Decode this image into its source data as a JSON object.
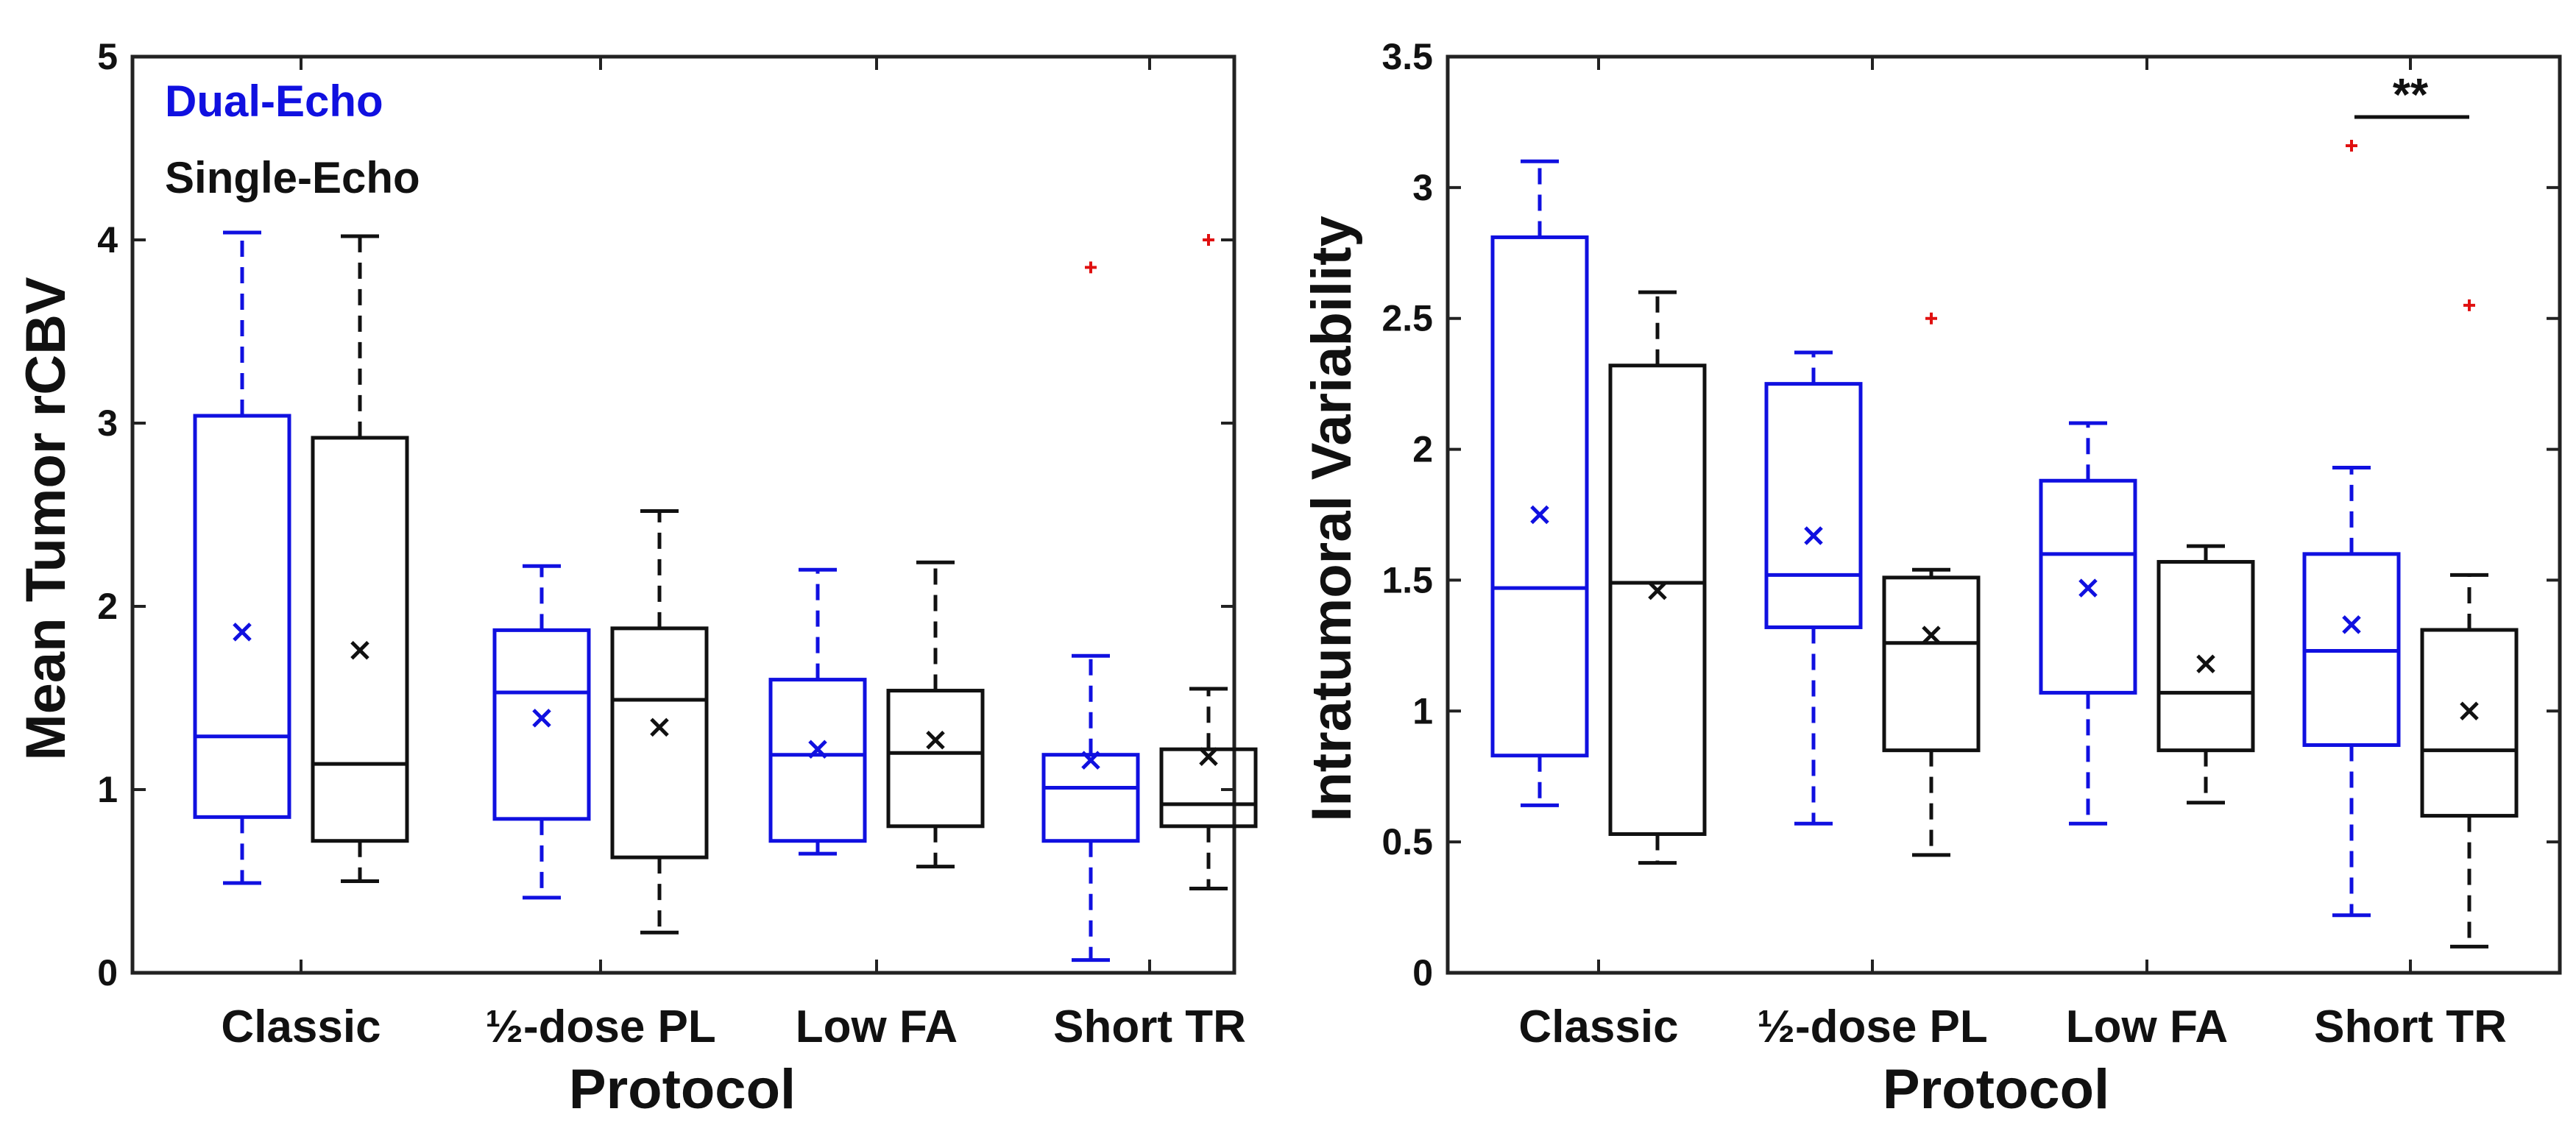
{
  "colors": {
    "dual": "#1010e0",
    "single": "#111111",
    "outlier": "#e01010"
  },
  "chart_data": [
    {
      "type": "box",
      "xlabel": "Protocol",
      "ylabel": "Mean Tumor rCBV",
      "ylim": [
        0,
        5
      ],
      "yticks": [
        0,
        1,
        2,
        3,
        4,
        5
      ],
      "categories": [
        "Classic",
        "½-dose PL",
        "Low FA",
        "Short TR"
      ],
      "legend": {
        "position": "top-left",
        "entries": [
          "Dual-Echo",
          "Single-Echo"
        ]
      },
      "series": [
        {
          "name": "Dual-Echo",
          "boxes": [
            {
              "whisker_low": 0.49,
              "q1": 0.85,
              "median": 1.29,
              "q3": 3.04,
              "whisker_high": 4.04,
              "mean": 1.86,
              "outliers": []
            },
            {
              "whisker_low": 0.41,
              "q1": 0.84,
              "median": 1.53,
              "q3": 1.87,
              "whisker_high": 2.22,
              "mean": 1.39,
              "outliers": []
            },
            {
              "whisker_low": 0.65,
              "q1": 0.72,
              "median": 1.19,
              "q3": 1.6,
              "whisker_high": 2.2,
              "mean": 1.22,
              "outliers": []
            },
            {
              "whisker_low": 0.07,
              "q1": 0.72,
              "median": 1.01,
              "q3": 1.19,
              "whisker_high": 1.73,
              "mean": 1.16,
              "outliers": [
                3.85
              ]
            }
          ]
        },
        {
          "name": "Single-Echo",
          "boxes": [
            {
              "whisker_low": 0.5,
              "q1": 0.72,
              "median": 1.14,
              "q3": 2.92,
              "whisker_high": 4.02,
              "mean": 1.76,
              "outliers": []
            },
            {
              "whisker_low": 0.22,
              "q1": 0.63,
              "median": 1.49,
              "q3": 1.88,
              "whisker_high": 2.52,
              "mean": 1.34,
              "outliers": []
            },
            {
              "whisker_low": 0.58,
              "q1": 0.8,
              "median": 1.2,
              "q3": 1.54,
              "whisker_high": 2.24,
              "mean": 1.27,
              "outliers": []
            },
            {
              "whisker_low": 0.46,
              "q1": 0.8,
              "median": 0.92,
              "q3": 1.22,
              "whisker_high": 1.55,
              "mean": 1.18,
              "outliers": [
                4.0
              ]
            }
          ]
        }
      ]
    },
    {
      "type": "box",
      "xlabel": "Protocol",
      "ylabel": "Intratumoral Variability",
      "ylim": [
        0,
        3.5
      ],
      "yticks": [
        0,
        0.5,
        1,
        1.5,
        2,
        2.5,
        3,
        3.5
      ],
      "categories": [
        "Classic",
        "½-dose PL",
        "Low FA",
        "Short TR"
      ],
      "annotation": {
        "text": "**",
        "category_index": 3
      },
      "series": [
        {
          "name": "Dual-Echo",
          "boxes": [
            {
              "whisker_low": 0.64,
              "q1": 0.83,
              "median": 1.47,
              "q3": 2.81,
              "whisker_high": 3.1,
              "mean": 1.75,
              "outliers": []
            },
            {
              "whisker_low": 0.57,
              "q1": 1.32,
              "median": 1.52,
              "q3": 2.25,
              "whisker_high": 2.37,
              "mean": 1.67,
              "outliers": []
            },
            {
              "whisker_low": 0.57,
              "q1": 1.07,
              "median": 1.6,
              "q3": 1.88,
              "whisker_high": 2.1,
              "mean": 1.47,
              "outliers": []
            },
            {
              "whisker_low": 0.22,
              "q1": 0.87,
              "median": 1.23,
              "q3": 1.6,
              "whisker_high": 1.93,
              "mean": 1.33,
              "outliers": [
                3.16
              ]
            }
          ]
        },
        {
          "name": "Single-Echo",
          "boxes": [
            {
              "whisker_low": 0.42,
              "q1": 0.53,
              "median": 1.49,
              "q3": 2.32,
              "whisker_high": 2.6,
              "mean": 1.46,
              "outliers": []
            },
            {
              "whisker_low": 0.45,
              "q1": 0.85,
              "median": 1.26,
              "q3": 1.51,
              "whisker_high": 1.54,
              "mean": 1.29,
              "outliers": [
                2.5
              ]
            },
            {
              "whisker_low": 0.65,
              "q1": 0.85,
              "median": 1.07,
              "q3": 1.57,
              "whisker_high": 1.63,
              "mean": 1.18,
              "outliers": []
            },
            {
              "whisker_low": 0.1,
              "q1": 0.6,
              "median": 0.85,
              "q3": 1.31,
              "whisker_high": 1.52,
              "mean": 1.0,
              "outliers": [
                2.55
              ]
            }
          ]
        }
      ]
    }
  ]
}
